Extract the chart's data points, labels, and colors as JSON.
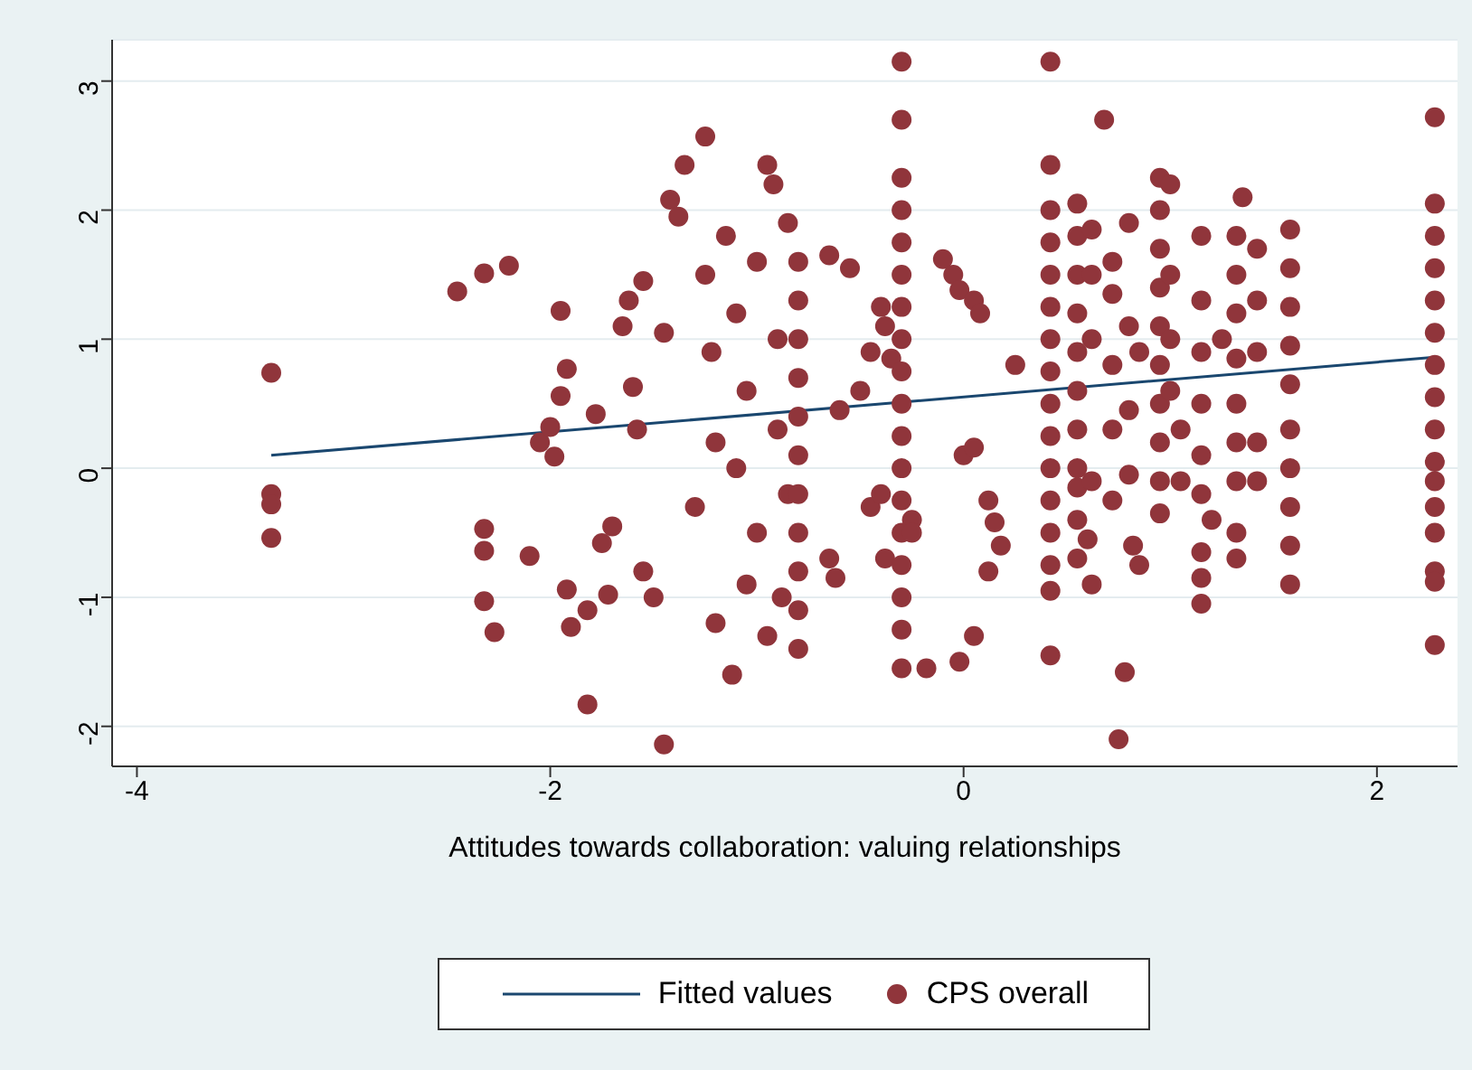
{
  "chart_data": {
    "type": "scatter",
    "xlabel": "Attitudes towards collaboration: valuing relationships",
    "xlim": [
      -4.12,
      2.39
    ],
    "xticks": [
      -4,
      -2,
      0,
      2
    ],
    "ylim": [
      -2.31,
      3.32
    ],
    "yticks": [
      -2,
      -1,
      0,
      1,
      2,
      3
    ],
    "grid": "y",
    "legend": "bottom",
    "marker": "circle",
    "series": [
      {
        "name": "Fitted values",
        "type": "line",
        "marker": "none",
        "color": "#1a476f",
        "x": [
          -3.35,
          2.28
        ],
        "values": [
          0.1,
          0.86
        ]
      },
      {
        "name": "CPS overall",
        "color": "#90353b",
        "x": [
          -3.35,
          -3.35,
          -3.35,
          -3.35,
          -2.45,
          -2.32,
          -2.2,
          -2.32,
          -2.32,
          -2.32,
          -2.27,
          -2.1,
          -2.05,
          -1.98,
          -2.0,
          -1.95,
          -1.92,
          -1.95,
          -1.92,
          -1.9,
          -1.82,
          -1.82,
          -1.78,
          -1.75,
          -1.72,
          -1.7,
          -1.65,
          -1.62,
          -1.6,
          -1.58,
          -1.55,
          -1.55,
          -1.5,
          -1.45,
          -1.45,
          -1.42,
          -1.38,
          -1.35,
          -1.3,
          -1.25,
          -1.25,
          -1.22,
          -1.2,
          -1.2,
          -1.15,
          -1.12,
          -1.1,
          -1.1,
          -1.05,
          -1.05,
          -1.0,
          -1.0,
          -0.95,
          -0.95,
          -0.92,
          -0.9,
          -0.9,
          -0.88,
          -0.85,
          -0.85,
          -0.8,
          -0.8,
          -0.8,
          -0.8,
          -0.8,
          -0.8,
          -0.8,
          -0.8,
          -0.8,
          -0.8,
          -0.8,
          -0.65,
          -0.62,
          -0.65,
          -0.6,
          -0.55,
          -0.5,
          -0.45,
          -0.45,
          -0.4,
          -0.38,
          -0.35,
          -0.38,
          -0.4,
          -0.3,
          -0.3,
          -0.3,
          -0.3,
          -0.3,
          -0.3,
          -0.3,
          -0.3,
          -0.3,
          -0.3,
          -0.3,
          -0.3,
          -0.3,
          -0.3,
          -0.3,
          -0.3,
          -0.3,
          -0.3,
          -0.25,
          -0.25,
          -0.1,
          -0.05,
          -0.02,
          0.05,
          0.08,
          0.0,
          0.05,
          0.12,
          0.15,
          -0.18,
          -0.02,
          0.05,
          0.12,
          0.25,
          0.18,
          0.42,
          0.42,
          0.42,
          0.42,
          0.42,
          0.42,
          0.42,
          0.42,
          0.42,
          0.42,
          0.42,
          0.42,
          0.42,
          0.42,
          0.42,
          0.42,
          0.55,
          0.55,
          0.55,
          0.55,
          0.55,
          0.55,
          0.55,
          0.55,
          0.55,
          0.55,
          0.55,
          0.62,
          0.62,
          0.62,
          0.62,
          0.62,
          0.6,
          0.68,
          0.75,
          0.72,
          0.72,
          0.72,
          0.72,
          0.72,
          0.78,
          0.8,
          0.8,
          0.8,
          0.8,
          0.82,
          0.85,
          0.85,
          0.95,
          0.95,
          0.95,
          0.95,
          0.95,
          0.95,
          0.95,
          0.95,
          0.95,
          0.95,
          1.0,
          1.0,
          1.0,
          1.0,
          1.05,
          1.05,
          1.15,
          1.15,
          1.15,
          1.15,
          1.15,
          1.15,
          1.15,
          1.15,
          1.15,
          1.2,
          1.25,
          1.35,
          1.32,
          1.32,
          1.32,
          1.32,
          1.32,
          1.32,
          1.32,
          1.32,
          1.32,
          1.42,
          1.42,
          1.42,
          1.42,
          1.42,
          1.58,
          1.58,
          1.58,
          1.58,
          1.58,
          1.58,
          1.58,
          1.58,
          1.58,
          1.58,
          2.28,
          2.28,
          2.28,
          2.28,
          2.28,
          2.28,
          2.28,
          2.28,
          2.28,
          2.28,
          2.28,
          2.28,
          2.28,
          2.28,
          2.28,
          2.28
        ],
        "values": [
          0.74,
          -0.2,
          -0.28,
          -0.54,
          1.37,
          1.51,
          1.57,
          -0.47,
          -0.64,
          -1.03,
          -1.27,
          -0.68,
          0.2,
          0.09,
          0.32,
          1.22,
          0.77,
          0.56,
          -0.94,
          -1.23,
          -1.83,
          -1.1,
          0.42,
          -0.58,
          -0.98,
          -0.45,
          1.1,
          1.3,
          0.63,
          0.3,
          1.45,
          -0.8,
          -1.0,
          -2.14,
          1.05,
          2.08,
          1.95,
          2.35,
          -0.3,
          2.57,
          1.5,
          0.9,
          -1.2,
          0.2,
          1.8,
          -1.6,
          0.0,
          1.2,
          -0.9,
          0.6,
          1.6,
          -0.5,
          -1.3,
          2.35,
          2.2,
          1.0,
          0.3,
          -1.0,
          1.9,
          -0.2,
          1.6,
          1.3,
          1.0,
          0.7,
          0.4,
          0.1,
          -0.2,
          -0.5,
          -0.8,
          -1.1,
          -1.4,
          -0.7,
          -0.85,
          1.65,
          0.45,
          1.55,
          0.6,
          0.9,
          -0.3,
          1.25,
          1.1,
          0.85,
          -0.7,
          -0.2,
          3.15,
          2.7,
          2.25,
          2.0,
          1.75,
          1.5,
          1.25,
          1.0,
          0.75,
          0.5,
          0.25,
          0.0,
          -0.25,
          -0.5,
          -0.75,
          -1.0,
          -1.25,
          -1.55,
          -0.4,
          -0.5,
          1.62,
          1.5,
          1.38,
          1.3,
          1.2,
          0.1,
          0.16,
          -0.25,
          -0.42,
          -1.55,
          -1.5,
          -1.3,
          -0.8,
          0.8,
          -0.6,
          3.15,
          2.35,
          2.0,
          1.75,
          1.5,
          1.25,
          1.0,
          0.75,
          0.5,
          0.25,
          0.0,
          -0.25,
          -0.5,
          -0.75,
          -0.95,
          -1.45,
          2.05,
          1.8,
          1.5,
          1.2,
          0.9,
          0.6,
          0.3,
          0.0,
          -0.15,
          -0.4,
          -0.7,
          1.85,
          1.5,
          1.0,
          -0.1,
          -0.9,
          -0.55,
          2.7,
          -2.1,
          1.6,
          1.35,
          0.8,
          0.3,
          -0.25,
          -1.58,
          1.9,
          1.1,
          0.45,
          -0.05,
          -0.6,
          -0.75,
          0.9,
          2.25,
          2.0,
          1.7,
          1.4,
          1.1,
          0.8,
          0.5,
          0.2,
          -0.1,
          -0.35,
          2.2,
          1.5,
          1.0,
          0.6,
          0.3,
          -0.1,
          1.8,
          1.3,
          0.9,
          0.5,
          0.1,
          -0.2,
          -0.65,
          -0.85,
          -1.05,
          -0.4,
          1.0,
          2.1,
          1.8,
          1.5,
          1.2,
          0.85,
          0.5,
          0.2,
          -0.1,
          -0.5,
          -0.7,
          1.7,
          1.3,
          0.9,
          0.2,
          -0.1,
          1.85,
          1.55,
          1.25,
          0.95,
          0.65,
          0.3,
          0.0,
          -0.3,
          -0.6,
          -0.9,
          2.72,
          2.05,
          1.8,
          1.55,
          1.3,
          1.05,
          0.8,
          0.55,
          0.3,
          0.05,
          -0.1,
          -0.3,
          -0.5,
          -0.8,
          -0.88,
          -1.37
        ]
      }
    ]
  }
}
